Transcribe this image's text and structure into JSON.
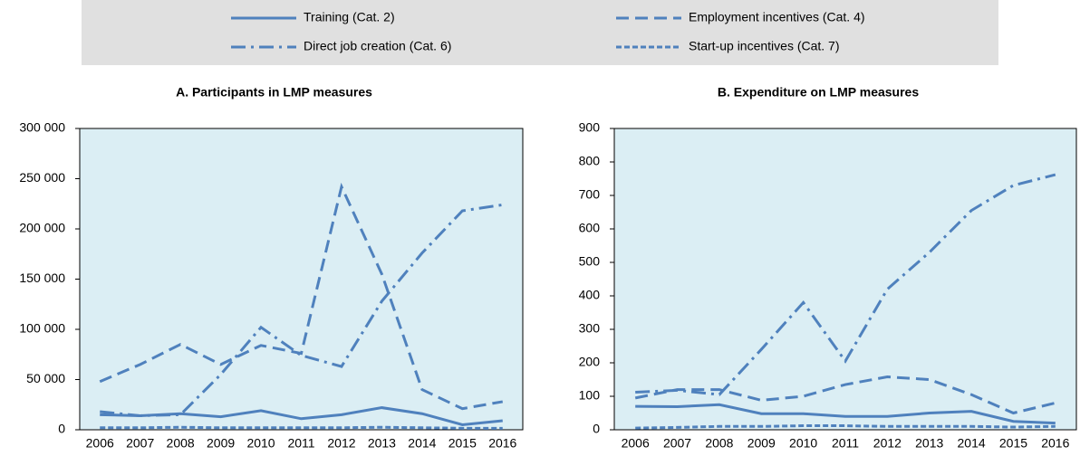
{
  "chart_data": [
    {
      "type": "line",
      "title": "A. Participants in LMP measures",
      "categories": [
        "2006",
        "2007",
        "2008",
        "2009",
        "2010",
        "2011",
        "2012",
        "2013",
        "2014",
        "2015",
        "2016"
      ],
      "ylim": [
        0,
        300000
      ],
      "yticks": [
        0,
        {
          "value": 50000,
          "label": "50 000"
        },
        {
          "value": 100000,
          "label": "100 000"
        },
        {
          "value": 150000,
          "label": "150 000"
        },
        {
          "value": 200000,
          "label": "200 000"
        },
        {
          "value": 250000,
          "label": "250 000"
        },
        {
          "value": 300000,
          "label": "300 000"
        }
      ],
      "series": [
        {
          "name": "Training (Cat. 2)",
          "color": "#4f81bd",
          "dash": "solid",
          "values": [
            15000,
            14000,
            16000,
            13000,
            19000,
            11000,
            15000,
            22000,
            16000,
            5000,
            9000
          ]
        },
        {
          "name": "Employment incentives (Cat. 4)",
          "color": "#4f81bd",
          "dash": "dashed",
          "values": [
            48000,
            65000,
            85000,
            65000,
            84000,
            76000,
            242000,
            155000,
            40000,
            21000,
            28000
          ]
        },
        {
          "name": "Direct job creation (Cat. 6)",
          "color": "#4f81bd",
          "dash": "dashdot",
          "values": [
            18000,
            14000,
            15000,
            55000,
            102000,
            74000,
            63000,
            128000,
            176000,
            218000,
            224000
          ]
        },
        {
          "name": "Start-up incentives (Cat. 7)",
          "color": "#4f81bd",
          "dash": "dotted",
          "values": [
            2000,
            2000,
            2500,
            2000,
            2000,
            2000,
            2000,
            2500,
            2000,
            1500,
            1500
          ]
        }
      ]
    },
    {
      "type": "line",
      "title": "B. Expenditure on LMP measures",
      "categories": [
        "2006",
        "2007",
        "2008",
        "2009",
        "2010",
        "2011",
        "2012",
        "2013",
        "2014",
        "2015",
        "2016"
      ],
      "ylim": [
        0,
        900
      ],
      "yticks": [
        0,
        100,
        200,
        300,
        400,
        500,
        600,
        700,
        800,
        900
      ],
      "series": [
        {
          "name": "Training (Cat. 2)",
          "color": "#4f81bd",
          "dash": "solid",
          "values": [
            70,
            69,
            75,
            48,
            48,
            40,
            40,
            50,
            55,
            25,
            20
          ]
        },
        {
          "name": "Employment incentives (Cat. 4)",
          "color": "#4f81bd",
          "dash": "dashed",
          "values": [
            95,
            120,
            120,
            88,
            100,
            135,
            158,
            150,
            105,
            50,
            80
          ]
        },
        {
          "name": "Direct job creation (Cat. 6)",
          "color": "#4f81bd",
          "dash": "dashdot",
          "values": [
            112,
            118,
            105,
            240,
            380,
            205,
            420,
            530,
            655,
            730,
            762
          ]
        },
        {
          "name": "Start-up incentives (Cat. 7)",
          "color": "#4f81bd",
          "dash": "dotted",
          "values": [
            5,
            7,
            10,
            10,
            12,
            12,
            10,
            10,
            10,
            8,
            10
          ]
        }
      ]
    }
  ]
}
